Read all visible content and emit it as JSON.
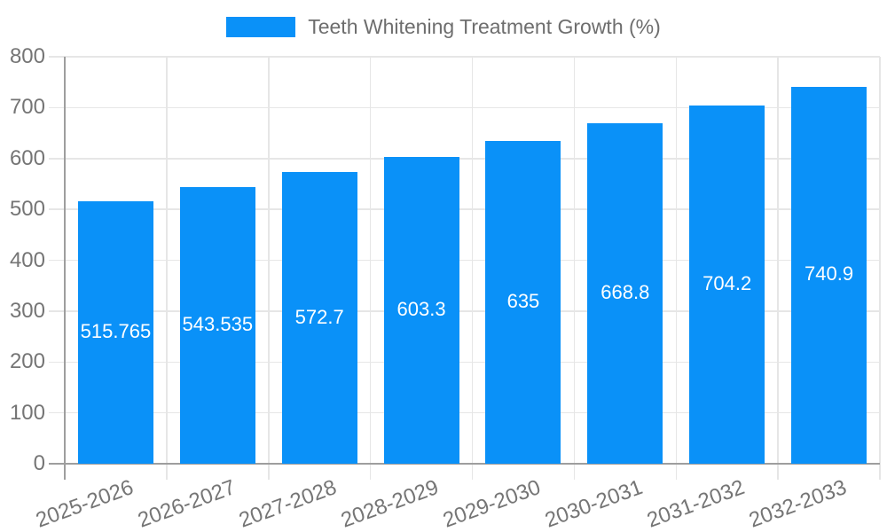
{
  "legend": {
    "series_label": "Teeth Whitening Treatment Growth (%)"
  },
  "chart_data": {
    "type": "bar",
    "title": "Teeth Whitening Treatment Growth (%)",
    "categories": [
      "2025-2026",
      "2026-2027",
      "2027-2028",
      "2028-2029",
      "2029-2030",
      "2030-2031",
      "2031-2032",
      "2032-2033"
    ],
    "series": [
      {
        "name": "Teeth Whitening Treatment Growth (%)",
        "values": [
          515.765,
          543.535,
          572.7,
          603.3,
          635,
          668.8,
          704.2,
          740.9
        ],
        "value_labels": [
          "515.765",
          "543.535",
          "572.7",
          "603.3",
          "635",
          "668.8",
          "704.2",
          "740.9"
        ]
      }
    ],
    "xlabel": "",
    "ylabel": "",
    "ylim": [
      0,
      800
    ],
    "ytick_step": 100,
    "ytick_labels": [
      "0",
      "100",
      "200",
      "300",
      "400",
      "500",
      "600",
      "700",
      "800"
    ],
    "grid": true,
    "legend_position": "top",
    "x_label_rotation_deg": -20,
    "colors": {
      "bar": "#0a91f8",
      "bar_value_label": "#ffffff",
      "axis_text": "#757575",
      "legend_text": "#6e6e6e",
      "grid_line": "#e6e6e6",
      "axis_line": "#9e9e9e",
      "background": "#ffffff"
    }
  }
}
